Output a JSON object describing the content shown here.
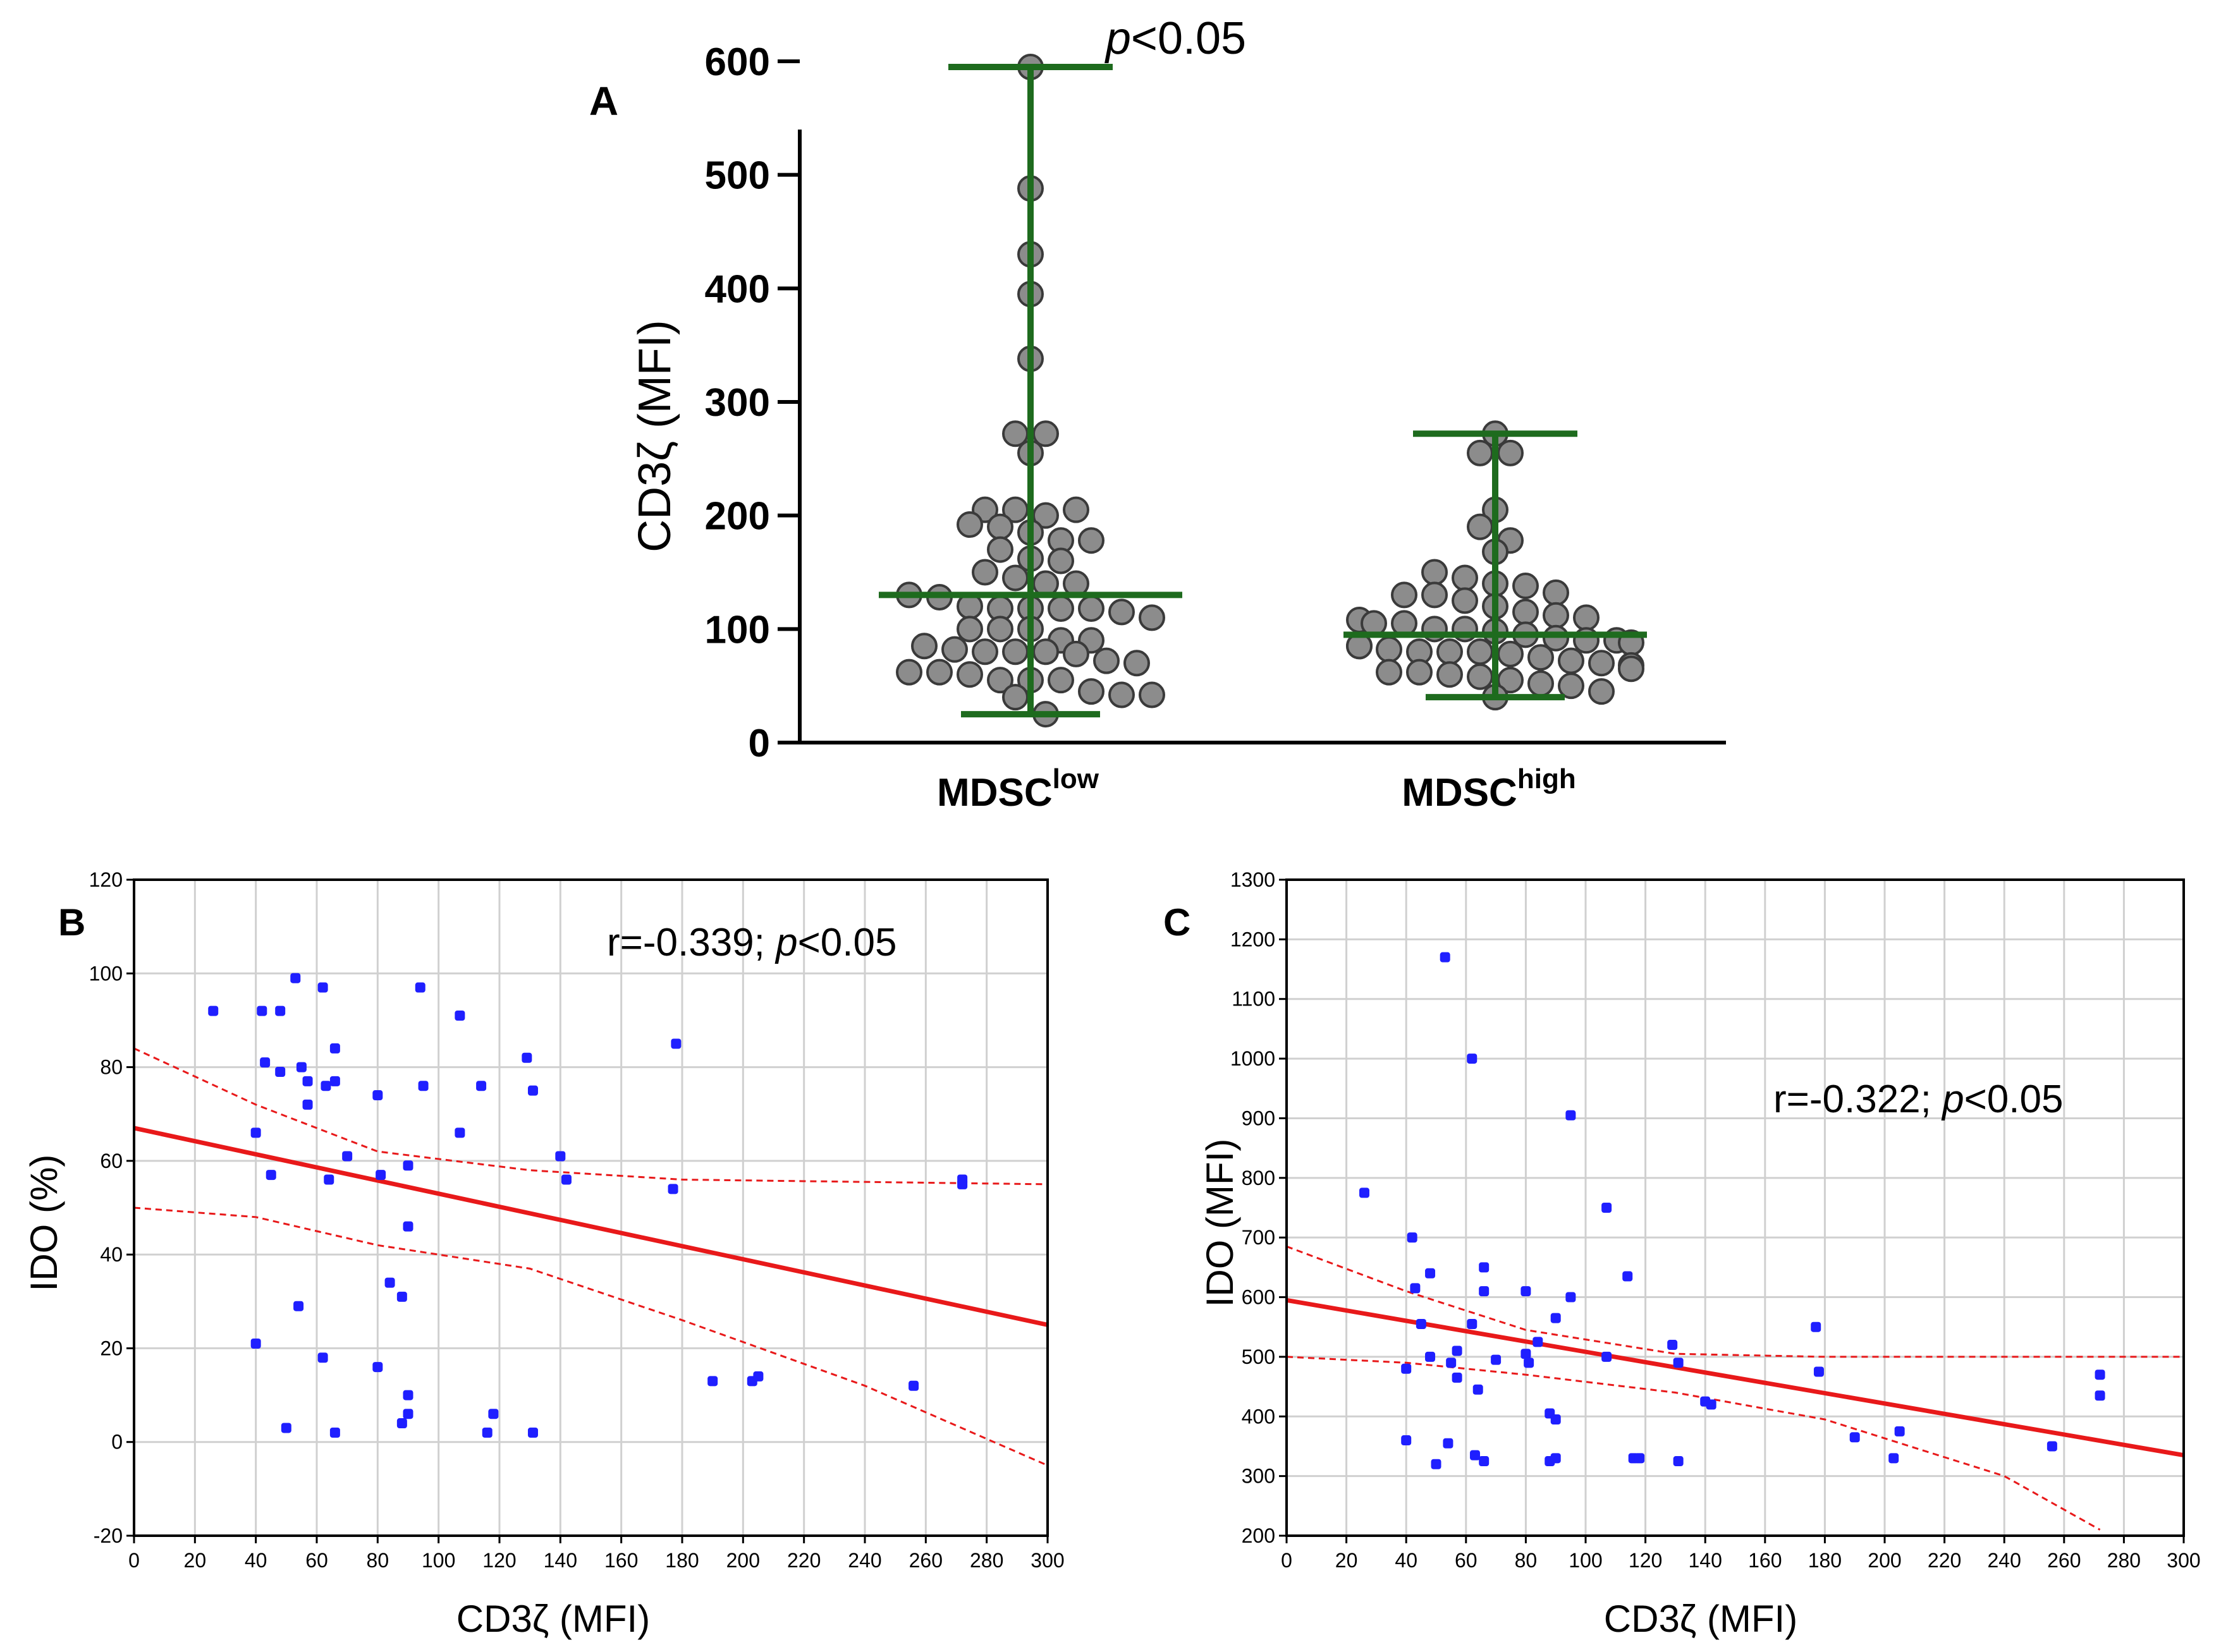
{
  "chart_data": [
    {
      "panel": "A",
      "type": "scatter",
      "title": "p<0.05",
      "title_italic": "p",
      "title_rest": "<0.05",
      "ylabel": "CD3ζ (MFI)",
      "ylim": [
        0,
        600
      ],
      "yticks": [
        "0",
        "100",
        "200",
        "300",
        "400",
        "500",
        "600"
      ],
      "ytick_values": [
        0,
        100,
        200,
        300,
        400,
        500,
        600
      ],
      "categories": [
        {
          "base": "MDSC",
          "sup": "low"
        },
        {
          "base": "MDSC",
          "sup": "high"
        }
      ],
      "colors": {
        "marker_fill": "#8c8c8c",
        "marker_edge": "#3a3a3a",
        "summary": "#1e6b1e",
        "axis": "#000000"
      },
      "series": [
        {
          "name": "MDSC low",
          "median": 130,
          "min": 25,
          "max": 595,
          "values": [
            595,
            488,
            430,
            395,
            338,
            272,
            272,
            255,
            205,
            205,
            200,
            205,
            192,
            190,
            185,
            178,
            178,
            170,
            162,
            160,
            150,
            145,
            140,
            140,
            130,
            128,
            120,
            118,
            118,
            118,
            118,
            115,
            110,
            100,
            100,
            100,
            90,
            90,
            85,
            82,
            80,
            80,
            80,
            78,
            72,
            70,
            62,
            62,
            60,
            55,
            55,
            55,
            45,
            42,
            42,
            40,
            25
          ]
        },
        {
          "name": "MDSC high",
          "median": 95,
          "min": 40,
          "max": 272,
          "values": [
            272,
            255,
            255,
            205,
            190,
            178,
            168,
            150,
            145,
            140,
            138,
            132,
            130,
            130,
            125,
            120,
            115,
            112,
            110,
            108,
            105,
            105,
            100,
            100,
            98,
            95,
            92,
            90,
            90,
            88,
            85,
            85,
            82,
            80,
            80,
            80,
            78,
            75,
            72,
            70,
            68,
            65,
            62,
            62,
            60,
            58,
            55,
            52,
            50,
            45,
            40
          ]
        }
      ]
    },
    {
      "panel": "B",
      "type": "scatter",
      "xlabel": "CD3ζ (MFI)",
      "ylabel": "IDO (%)",
      "xlim": [
        0,
        300
      ],
      "ylim": [
        -20,
        120
      ],
      "xticks": [
        "0",
        "20",
        "40",
        "60",
        "80",
        "100",
        "120",
        "140",
        "160",
        "180",
        "200",
        "220",
        "240",
        "260",
        "280",
        "300"
      ],
      "xtick_values": [
        0,
        20,
        40,
        60,
        80,
        100,
        120,
        140,
        160,
        180,
        200,
        220,
        240,
        260,
        280,
        300
      ],
      "yticks": [
        "-20",
        "0",
        "20",
        "40",
        "60",
        "80",
        "100",
        "120"
      ],
      "ytick_values": [
        -20,
        0,
        20,
        40,
        60,
        80,
        100,
        120
      ],
      "annotation_pre": "r=-0.339; ",
      "annotation_italic": "p",
      "annotation_post": "<0.05",
      "colors": {
        "points": "#1f1fff",
        "fit": "#e8191a",
        "grid": "#d0d0d0"
      },
      "points": [
        [
          26,
          92
        ],
        [
          40,
          66
        ],
        [
          40,
          21
        ],
        [
          42,
          92
        ],
        [
          43,
          81
        ],
        [
          45,
          57
        ],
        [
          48,
          92
        ],
        [
          48,
          79
        ],
        [
          50,
          3
        ],
        [
          53,
          99
        ],
        [
          54,
          29
        ],
        [
          55,
          80
        ],
        [
          57,
          72
        ],
        [
          57,
          77
        ],
        [
          62,
          18
        ],
        [
          62,
          97
        ],
        [
          63,
          76
        ],
        [
          64,
          56
        ],
        [
          66,
          77
        ],
        [
          66,
          2
        ],
        [
          66,
          84
        ],
        [
          70,
          61
        ],
        [
          80,
          16
        ],
        [
          80,
          74
        ],
        [
          81,
          57
        ],
        [
          84,
          34
        ],
        [
          88,
          31
        ],
        [
          88,
          4
        ],
        [
          90,
          6
        ],
        [
          90,
          10
        ],
        [
          90,
          46
        ],
        [
          90,
          59
        ],
        [
          94,
          97
        ],
        [
          95,
          76
        ],
        [
          107,
          66
        ],
        [
          107,
          91
        ],
        [
          114,
          76
        ],
        [
          116,
          2
        ],
        [
          118,
          6
        ],
        [
          129,
          82
        ],
        [
          131,
          75
        ],
        [
          131,
          2
        ],
        [
          140,
          61
        ],
        [
          142,
          56
        ],
        [
          177,
          54
        ],
        [
          178,
          85
        ],
        [
          190,
          13
        ],
        [
          203,
          13
        ],
        [
          205,
          14
        ],
        [
          256,
          12
        ],
        [
          272,
          55
        ],
        [
          272,
          56
        ]
      ],
      "fit": {
        "x": [
          0,
          300
        ],
        "y": [
          67,
          25
        ]
      },
      "ci_upper": [
        [
          0,
          84
        ],
        [
          40,
          72
        ],
        [
          80,
          62
        ],
        [
          130,
          58
        ],
        [
          180,
          56
        ],
        [
          300,
          55
        ]
      ],
      "ci_lower": [
        [
          0,
          50
        ],
        [
          40,
          48
        ],
        [
          80,
          42
        ],
        [
          130,
          37
        ],
        [
          180,
          26
        ],
        [
          240,
          12
        ],
        [
          300,
          -5
        ]
      ]
    },
    {
      "panel": "C",
      "type": "scatter",
      "xlabel": "CD3ζ (MFI)",
      "ylabel": "IDO (MFI)",
      "xlim": [
        0,
        300
      ],
      "ylim": [
        200,
        1300
      ],
      "xticks": [
        "0",
        "20",
        "40",
        "60",
        "80",
        "100",
        "120",
        "140",
        "160",
        "180",
        "200",
        "220",
        "240",
        "260",
        "280",
        "300"
      ],
      "xtick_values": [
        0,
        20,
        40,
        60,
        80,
        100,
        120,
        140,
        160,
        180,
        200,
        220,
        240,
        260,
        280,
        300
      ],
      "yticks": [
        "200",
        "300",
        "400",
        "500",
        "600",
        "700",
        "800",
        "900",
        "1000",
        "1100",
        "1200",
        "1300"
      ],
      "ytick_values": [
        200,
        300,
        400,
        500,
        600,
        700,
        800,
        900,
        1000,
        1100,
        1200,
        1300
      ],
      "annotation_pre": "r=-0.322; ",
      "annotation_italic": "p",
      "annotation_post": "<0.05",
      "colors": {
        "points": "#1f1fff",
        "fit": "#e8191a",
        "grid": "#d0d0d0"
      },
      "points": [
        [
          26,
          775
        ],
        [
          40,
          360
        ],
        [
          40,
          480
        ],
        [
          42,
          700
        ],
        [
          43,
          615
        ],
        [
          45,
          555
        ],
        [
          48,
          640
        ],
        [
          48,
          500
        ],
        [
          50,
          320
        ],
        [
          53,
          1170
        ],
        [
          54,
          355
        ],
        [
          55,
          490
        ],
        [
          57,
          465
        ],
        [
          57,
          510
        ],
        [
          62,
          555
        ],
        [
          62,
          1000
        ],
        [
          63,
          335
        ],
        [
          64,
          445
        ],
        [
          66,
          650
        ],
        [
          66,
          325
        ],
        [
          66,
          610
        ],
        [
          70,
          495
        ],
        [
          80,
          610
        ],
        [
          80,
          505
        ],
        [
          81,
          490
        ],
        [
          84,
          525
        ],
        [
          88,
          405
        ],
        [
          88,
          325
        ],
        [
          90,
          565
        ],
        [
          90,
          330
        ],
        [
          90,
          395
        ],
        [
          95,
          600
        ],
        [
          95,
          905
        ],
        [
          107,
          750
        ],
        [
          107,
          500
        ],
        [
          114,
          635
        ],
        [
          116,
          330
        ],
        [
          118,
          330
        ],
        [
          129,
          520
        ],
        [
          131,
          490
        ],
        [
          131,
          325
        ],
        [
          140,
          425
        ],
        [
          142,
          420
        ],
        [
          177,
          550
        ],
        [
          178,
          475
        ],
        [
          190,
          365
        ],
        [
          203,
          330
        ],
        [
          205,
          375
        ],
        [
          256,
          350
        ],
        [
          272,
          470
        ],
        [
          272,
          435
        ]
      ],
      "fit": {
        "x": [
          0,
          300
        ],
        "y": [
          595,
          335
        ]
      },
      "ci_upper": [
        [
          0,
          685
        ],
        [
          40,
          610
        ],
        [
          80,
          545
        ],
        [
          130,
          505
        ],
        [
          180,
          500
        ],
        [
          300,
          500
        ]
      ],
      "ci_lower": [
        [
          0,
          500
        ],
        [
          40,
          490
        ],
        [
          80,
          470
        ],
        [
          130,
          440
        ],
        [
          180,
          395
        ],
        [
          240,
          300
        ],
        [
          272,
          210
        ]
      ]
    }
  ]
}
